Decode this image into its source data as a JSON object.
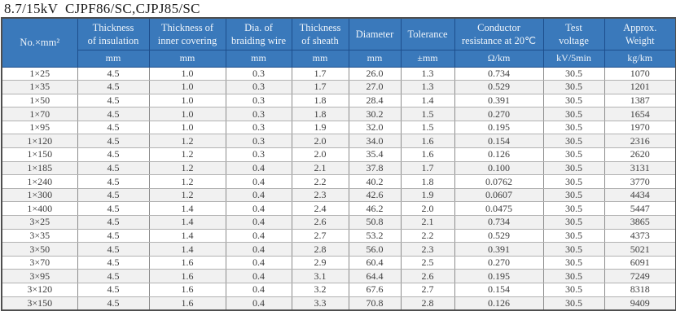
{
  "page_title": "8.7/15kV  CJPF86/SC,CJPJ85/SC",
  "colors": {
    "header_bg": "#3a79bb",
    "header_divider": "#1d4e8c",
    "header_text": "#eef4fa",
    "outer_border": "#4e4e4e",
    "row_stripe": "#f1f1f1",
    "cell_border_vertical": "#8c8c8c",
    "cell_border_horizontal": "#b2b2b2",
    "body_text": "#3d3d3d"
  },
  "table": {
    "columns": [
      {
        "label": "No.×mm²",
        "unit": ""
      },
      {
        "label": "Thickness\nof insulation",
        "unit": "mm"
      },
      {
        "label": "Thickness of\ninner covering",
        "unit": "mm"
      },
      {
        "label": "Dia. of\nbraiding wire",
        "unit": "mm"
      },
      {
        "label": "Thickness\nof sheath",
        "unit": "mm"
      },
      {
        "label": "Diameter",
        "unit": "mm"
      },
      {
        "label": "Tolerance",
        "unit": "±mm"
      },
      {
        "label": "Conductor\nresistance at 20℃",
        "unit": "Ω/km"
      },
      {
        "label": "Test\nvoltage",
        "unit": "kV/5min"
      },
      {
        "label": "Approx.\nWeight",
        "unit": "kg/km"
      }
    ],
    "rows": [
      [
        "1×25",
        "4.5",
        "1.0",
        "0.3",
        "1.7",
        "26.0",
        "1.3",
        "0.734",
        "30.5",
        "1070"
      ],
      [
        "1×35",
        "4.5",
        "1.0",
        "0.3",
        "1.7",
        "27.0",
        "1.3",
        "0.529",
        "30.5",
        "1201"
      ],
      [
        "1×50",
        "4.5",
        "1.0",
        "0.3",
        "1.8",
        "28.4",
        "1.4",
        "0.391",
        "30.5",
        "1387"
      ],
      [
        "1×70",
        "4.5",
        "1.0",
        "0.3",
        "1.8",
        "30.2",
        "1.5",
        "0.270",
        "30.5",
        "1654"
      ],
      [
        "1×95",
        "4.5",
        "1.0",
        "0.3",
        "1.9",
        "32.0",
        "1.5",
        "0.195",
        "30.5",
        "1970"
      ],
      [
        "1×120",
        "4.5",
        "1.2",
        "0.3",
        "2.0",
        "34.0",
        "1.6",
        "0.154",
        "30.5",
        "2316"
      ],
      [
        "1×150",
        "4.5",
        "1.2",
        "0.3",
        "2.0",
        "35.4",
        "1.6",
        "0.126",
        "30.5",
        "2620"
      ],
      [
        "1×185",
        "4.5",
        "1.2",
        "0.4",
        "2.1",
        "37.8",
        "1.7",
        "0.100",
        "30.5",
        "3131"
      ],
      [
        "1×240",
        "4.5",
        "1.2",
        "0.4",
        "2.2",
        "40.2",
        "1.8",
        "0.0762",
        "30.5",
        "3770"
      ],
      [
        "1×300",
        "4.5",
        "1.2",
        "0.4",
        "2.3",
        "42.6",
        "1.9",
        "0.0607",
        "30.5",
        "4434"
      ],
      [
        "1×400",
        "4.5",
        "1.4",
        "0.4",
        "2.4",
        "46.2",
        "2.0",
        "0.0475",
        "30.5",
        "5447"
      ],
      [
        "3×25",
        "4.5",
        "1.4",
        "0.4",
        "2.6",
        "50.8",
        "2.1",
        "0.734",
        "30.5",
        "3865"
      ],
      [
        "3×35",
        "4.5",
        "1.4",
        "0.4",
        "2.7",
        "53.2",
        "2.2",
        "0.529",
        "30.5",
        "4373"
      ],
      [
        "3×50",
        "4.5",
        "1.4",
        "0.4",
        "2.8",
        "56.0",
        "2.3",
        "0.391",
        "30.5",
        "5021"
      ],
      [
        "3×70",
        "4.5",
        "1.6",
        "0.4",
        "2.9",
        "60.4",
        "2.5",
        "0.270",
        "30.5",
        "6091"
      ],
      [
        "3×95",
        "4.5",
        "1.6",
        "0.4",
        "3.1",
        "64.4",
        "2.6",
        "0.195",
        "30.5",
        "7249"
      ],
      [
        "3×120",
        "4.5",
        "1.6",
        "0.4",
        "3.2",
        "67.6",
        "2.7",
        "0.154",
        "30.5",
        "8318"
      ],
      [
        "3×150",
        "4.5",
        "1.6",
        "0.4",
        "3.3",
        "70.8",
        "2.8",
        "0.126",
        "30.5",
        "9409"
      ]
    ]
  }
}
